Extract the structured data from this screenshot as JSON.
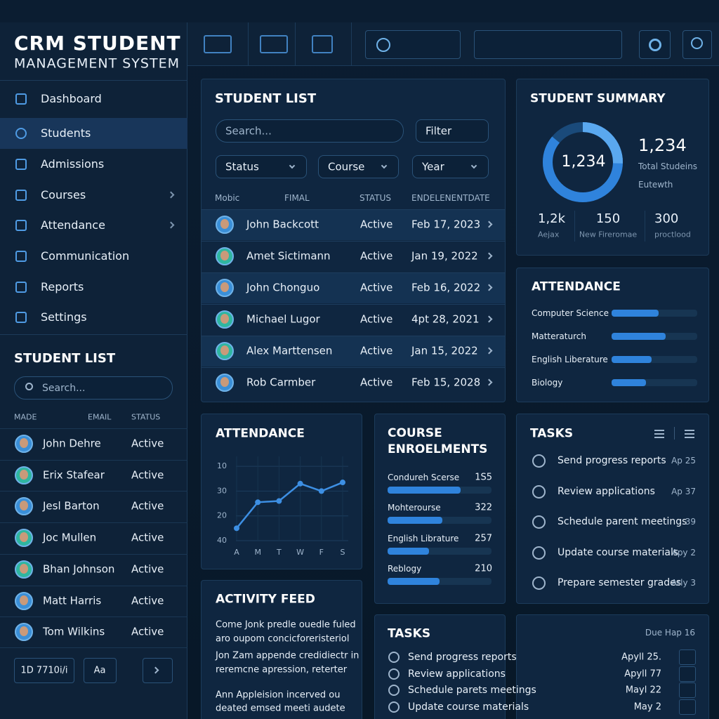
{
  "sidebar": {
    "title": "CRM STUDENT",
    "subtitle": "MANAGEMENT SYSTEM",
    "nav": [
      "Dashboard",
      "Students",
      "Admissions",
      "Courses",
      "Attendance",
      "Communication",
      "Reports",
      "Settings"
    ],
    "student_list": {
      "title": "STUDENT LIST",
      "search": "Search...",
      "columns": [
        "MADE",
        "EMAIL",
        "STATUS"
      ],
      "rows": [
        {
          "name": "John Dehre",
          "status": "Active"
        },
        {
          "name": "Erix Stafear",
          "status": "Active"
        },
        {
          "name": "Jesl Barton",
          "status": "Active"
        },
        {
          "name": "Joc Mullen",
          "status": "Active"
        },
        {
          "name": "Bhan Johnson",
          "status": "Active"
        },
        {
          "name": "Matt Harris",
          "status": "Active"
        },
        {
          "name": "Tom Wilkins",
          "status": "Active"
        }
      ]
    },
    "footer": [
      "1D 7710i/i",
      "Aa"
    ]
  },
  "student_list": {
    "title": "STUDENT LIST",
    "search": "Search...",
    "filter": "Filter",
    "dropdowns": [
      "Status",
      "Course",
      "Year"
    ],
    "columns": [
      "Mobic",
      "FIMAL",
      "STATUS",
      "ENDELENENTDATE"
    ],
    "rows": [
      {
        "name": "John Backcott",
        "status": "Active",
        "date": "Feb 17, 2023"
      },
      {
        "name": "Amet Sictimann",
        "status": "Active",
        "date": "Jan 19, 2022"
      },
      {
        "name": "John Chonguo",
        "status": "Active",
        "date": "Feb 16, 2022"
      },
      {
        "name": "Michael Lugor",
        "status": "Active",
        "date": "4pt 28, 2021"
      },
      {
        "name": "Alex Marttensen",
        "status": "Active",
        "date": "Jan 15, 2022"
      },
      {
        "name": "Rob Carmber",
        "status": "Active",
        "date": "Feb 15, 2028"
      }
    ]
  },
  "summary": {
    "title": "STUDENT SUMMARY",
    "donut_label": "1,234",
    "total": "1,234",
    "total_label": "Total Studeins",
    "total_sub": "Eutewth",
    "stats": [
      {
        "value": "1,2k",
        "label": "Aejax"
      },
      {
        "value": "150",
        "label": "New Fireromae"
      },
      {
        "value": "300",
        "label": "proctlood"
      }
    ]
  },
  "attendance": {
    "title": "ATTENDANCE",
    "rows": [
      {
        "name": "Computer Science",
        "progress": 55
      },
      {
        "name": "Matteraturch",
        "progress": 63
      },
      {
        "name": "English Liberature",
        "progress": 47
      },
      {
        "name": "Biology",
        "progress": 40
      }
    ]
  },
  "chart_data": {
    "type": "line",
    "title": "ATTENDANCE",
    "categories": [
      "A",
      "M",
      "T",
      "W",
      "F",
      "S"
    ],
    "values": [
      0.5,
      1.55,
      1.6,
      2.3,
      2.0,
      2.35
    ],
    "color": "#3d8fe3",
    "ylim": [
      0,
      3.4
    ],
    "yticks": [
      {
        "value": 0,
        "label": "40"
      },
      {
        "value": 1,
        "label": "20"
      },
      {
        "value": 2,
        "label": "30"
      },
      {
        "value": 3,
        "label": "10"
      }
    ],
    "grid": true
  },
  "course_enrolments": {
    "title": "COURSE ENROELMENTS",
    "rows": [
      {
        "name": "Condureh Scerse",
        "count": "1S5",
        "progress": 70
      },
      {
        "name": "Mohterourse",
        "count": "322",
        "progress": 53
      },
      {
        "name": "English Librature",
        "count": "257",
        "progress": 40
      },
      {
        "name": "Reblogy",
        "count": "210",
        "progress": 50
      }
    ]
  },
  "tasks": {
    "title": "TASKS",
    "items": [
      {
        "text": "Send progress reports",
        "due": "Ap 25"
      },
      {
        "text": "Review applications",
        "due": "Ap 37"
      },
      {
        "text": "Schedule parent meetings",
        "due": "39"
      },
      {
        "text": "Update course materials",
        "due": "Apy 2"
      },
      {
        "text": "Prepare semester grades",
        "due": "Arly 3"
      }
    ]
  },
  "activity_feed": {
    "title": "ACTIVITY FEED",
    "lines": [
      "Come Jonk predle ouedle fuled",
      "aro oupom concicforeristeriol",
      "Jon Zam appende credidiectr in",
      "reremcne apression, reterter",
      "Ann Appleision incerved ou",
      "deated emsed meeti audete"
    ]
  },
  "bottom_tasks": {
    "title": "TASKS",
    "due_header": "Due Hap 16",
    "items": [
      {
        "text": "Send progress reports",
        "due": "Apyll 25."
      },
      {
        "text": "Review applications",
        "due": "Apyll 77"
      },
      {
        "text": "Schedule parets meetings",
        "due": "Mayl 22"
      },
      {
        "text": "Update course materials",
        "due": "May 2"
      }
    ]
  }
}
